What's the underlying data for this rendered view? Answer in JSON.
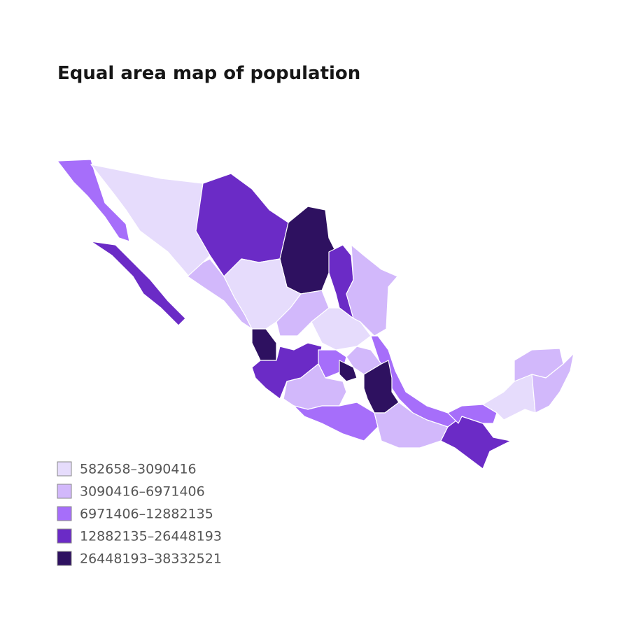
{
  "title": "Equal area map of population",
  "legend": {
    "items": [
      {
        "label": "582658–3090416",
        "color": "#e6dcfc"
      },
      {
        "label": "3090416–6971406",
        "color": "#d2b8fb"
      },
      {
        "label": "6971406–12882135",
        "color": "#a66efa"
      },
      {
        "label": "12882135–26448193",
        "color": "#6b2bc6"
      },
      {
        "label": "26448193–38332521",
        "color": "#2e1160"
      }
    ]
  }
}
